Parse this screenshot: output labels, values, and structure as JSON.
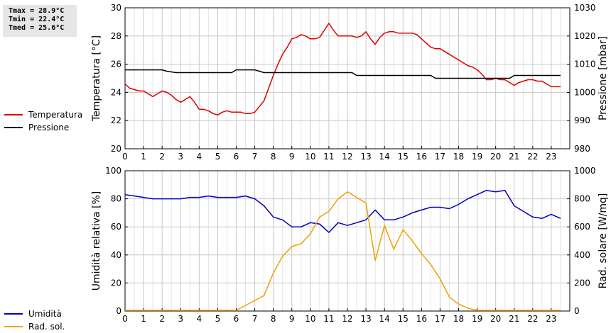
{
  "stats": {
    "tmax": "Tmax = 28.9°C",
    "tmin": "Tmin = 22.4°C",
    "tmed": "Tmed = 25.6°C"
  },
  "legend_top": [
    {
      "label": "Temperatura",
      "color": "#dd0000"
    },
    {
      "label": "Pressione",
      "color": "#000000"
    }
  ],
  "legend_bottom": [
    {
      "label": "Umidità",
      "color": "#0000bb"
    },
    {
      "label": "Rad. sol.",
      "color": "#f0a000"
    }
  ],
  "chart_data": [
    {
      "type": "line",
      "xlim": [
        0,
        24
      ],
      "xticks": [
        "0",
        "1",
        "2",
        "3",
        "4",
        "5",
        "6",
        "7",
        "8",
        "9",
        "10",
        "11",
        "12",
        "13",
        "14",
        "15",
        "16",
        "17",
        "18",
        "19",
        "20",
        "21",
        "22",
        "23"
      ],
      "ylabel": "Temperatura [°C]",
      "ylim": [
        20,
        30
      ],
      "yticks": [
        "20",
        "22",
        "24",
        "26",
        "28",
        "30"
      ],
      "y2label": "Pressione [mbar]",
      "y2lim": [
        980,
        1030
      ],
      "y2ticks": [
        "980",
        "990",
        "1000",
        "1010",
        "1020",
        "1030"
      ],
      "grid": true,
      "series": [
        {
          "name": "Temperatura",
          "axis": "left",
          "color": "#dd0000",
          "x": [
            0,
            0.25,
            0.5,
            0.75,
            1,
            1.25,
            1.5,
            1.75,
            2,
            2.25,
            2.5,
            2.75,
            3,
            3.25,
            3.5,
            3.75,
            4,
            4.25,
            4.5,
            4.75,
            5,
            5.25,
            5.5,
            5.75,
            6,
            6.25,
            6.5,
            6.75,
            7,
            7.25,
            7.5,
            7.75,
            8,
            8.25,
            8.5,
            8.75,
            9,
            9.25,
            9.5,
            9.75,
            10,
            10.25,
            10.5,
            10.75,
            11,
            11.25,
            11.5,
            11.75,
            12,
            12.25,
            12.5,
            12.75,
            13,
            13.25,
            13.5,
            13.75,
            14,
            14.25,
            14.5,
            14.75,
            15,
            15.25,
            15.5,
            15.75,
            16,
            16.25,
            16.5,
            16.75,
            17,
            17.25,
            17.5,
            17.75,
            18,
            18.25,
            18.5,
            18.75,
            19,
            19.25,
            19.5,
            19.75,
            20,
            20.25,
            20.5,
            20.75,
            21,
            21.25,
            21.5,
            21.75,
            22,
            22.25,
            22.5,
            22.75,
            23,
            23.25,
            23.5
          ],
          "y": [
            24.6,
            24.3,
            24.2,
            24.1,
            24.1,
            23.9,
            23.7,
            23.9,
            24.1,
            24.0,
            23.8,
            23.5,
            23.3,
            23.5,
            23.7,
            23.3,
            22.8,
            22.8,
            22.7,
            22.5,
            22.4,
            22.6,
            22.7,
            22.6,
            22.6,
            22.6,
            22.5,
            22.5,
            22.6,
            23.0,
            23.4,
            24.3,
            25.2,
            26.0,
            26.7,
            27.2,
            27.8,
            27.9,
            28.1,
            28.0,
            27.8,
            27.8,
            27.9,
            28.4,
            28.9,
            28.4,
            28.0,
            28.0,
            28.0,
            28.0,
            27.9,
            28.0,
            28.3,
            27.8,
            27.4,
            27.9,
            28.2,
            28.3,
            28.3,
            28.2,
            28.2,
            28.2,
            28.2,
            28.1,
            27.8,
            27.5,
            27.2,
            27.1,
            27.1,
            26.9,
            26.7,
            26.5,
            26.3,
            26.1,
            25.9,
            25.8,
            25.6,
            25.3,
            24.9,
            24.9,
            25.0,
            24.9,
            24.9,
            24.7,
            24.5,
            24.7,
            24.8,
            24.9,
            24.9,
            24.8,
            24.8,
            24.6,
            24.4,
            24.4,
            24.4
          ]
        },
        {
          "name": "Pressione",
          "axis": "right",
          "color": "#000000",
          "x": [
            0,
            2,
            2.25,
            2.75,
            5.75,
            6,
            7,
            7.25,
            7.5,
            12.25,
            12.5,
            16.5,
            16.75,
            20.75,
            21,
            23.5
          ],
          "y": [
            1008,
            1008,
            1007.5,
            1007,
            1007,
            1008,
            1008,
            1007.5,
            1007,
            1007,
            1006,
            1006,
            1005,
            1005,
            1006,
            1006
          ]
        }
      ]
    },
    {
      "type": "line",
      "xlim": [
        0,
        24
      ],
      "xticks": [
        "0",
        "1",
        "2",
        "3",
        "4",
        "5",
        "6",
        "7",
        "8",
        "9",
        "10",
        "11",
        "12",
        "13",
        "14",
        "15",
        "16",
        "17",
        "18",
        "19",
        "20",
        "21",
        "22",
        "23"
      ],
      "ylabel": "Umidità relativa [%]",
      "ylim": [
        0,
        100
      ],
      "yticks": [
        "0",
        "20",
        "40",
        "60",
        "80",
        "100"
      ],
      "y2label": "Rad. solare [W/mq]",
      "y2lim": [
        0,
        1000
      ],
      "y2ticks": [
        "0",
        "200",
        "400",
        "600",
        "800",
        "1000"
      ],
      "grid": true,
      "series": [
        {
          "name": "Umidità",
          "axis": "left",
          "color": "#0000bb",
          "x": [
            0,
            0.5,
            1,
            1.5,
            2,
            2.5,
            3,
            3.5,
            4,
            4.5,
            5,
            5.5,
            6,
            6.5,
            7,
            7.5,
            8,
            8.5,
            9,
            9.5,
            10,
            10.5,
            11,
            11.5,
            12,
            12.5,
            13,
            13.5,
            14,
            14.5,
            15,
            15.5,
            16,
            16.5,
            17,
            17.5,
            18,
            18.5,
            19,
            19.5,
            20,
            20.5,
            21,
            21.5,
            22,
            22.5,
            23,
            23.5
          ],
          "y": [
            83,
            82,
            81,
            80,
            80,
            80,
            80,
            81,
            81,
            82,
            81,
            81,
            81,
            82,
            80,
            75,
            67,
            65,
            60,
            60,
            63,
            62,
            56,
            63,
            61,
            63,
            65,
            72,
            65,
            65,
            67,
            70,
            72,
            74,
            74,
            73,
            76,
            80,
            83,
            86,
            85,
            86,
            75,
            71,
            67,
            66,
            69,
            66
          ]
        },
        {
          "name": "Rad. sol.",
          "axis": "right",
          "color": "#f0a000",
          "x": [
            0,
            6,
            6.5,
            7,
            7.5,
            8,
            8.5,
            9,
            9.5,
            10,
            10.5,
            11,
            11.5,
            12,
            12.5,
            13,
            13.5,
            14,
            14.5,
            15,
            15.5,
            16,
            16.5,
            17,
            17.5,
            18,
            18.5,
            19,
            19.5,
            23.5
          ],
          "y": [
            5,
            5,
            40,
            75,
            110,
            270,
            390,
            460,
            480,
            550,
            670,
            710,
            800,
            850,
            810,
            770,
            360,
            610,
            440,
            580,
            500,
            410,
            330,
            230,
            100,
            50,
            20,
            5,
            5,
            5
          ]
        }
      ]
    }
  ]
}
